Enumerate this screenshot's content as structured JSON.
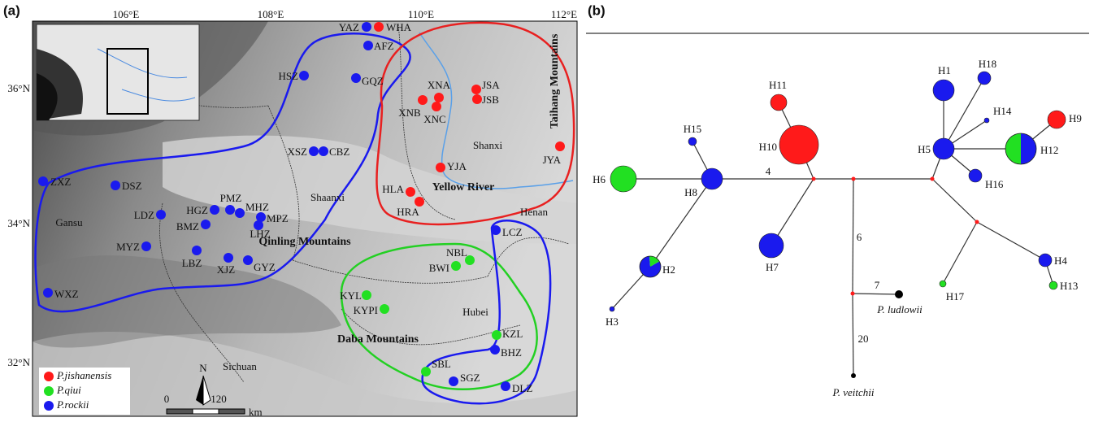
{
  "panel_a": {
    "label": "(a)",
    "lon_ticks": [
      "106°E",
      "108°E",
      "110°E",
      "112°E"
    ],
    "lat_ticks": [
      "36°N",
      "34°N",
      "32°N"
    ],
    "regions": [
      "Shaanxi",
      "Shanxi",
      "Gansu",
      "Henan",
      "Hubei",
      "Sichuan"
    ],
    "features": [
      "Qinling Mountains",
      "Daba Mountains",
      "Yellow River",
      "Taihang Mountains"
    ],
    "north": "N",
    "scale": {
      "start": "0",
      "end": "120",
      "unit": "km"
    },
    "legend": [
      {
        "name": "P.jishanensis",
        "color": "#ff1a1a",
        "sites": [
          "WHA",
          "XNA",
          "XNB",
          "XNC",
          "JSA",
          "JSB",
          "YJA",
          "HLA",
          "HRA",
          "JYA"
        ]
      },
      {
        "name": "P.qiui",
        "color": "#22e022",
        "sites": [
          "NBL",
          "BWI",
          "KYL",
          "KYPI",
          "KZL",
          "SBL"
        ]
      },
      {
        "name": "P.rockii",
        "color": "#1a1aee",
        "sites": [
          "YAZ",
          "AFZ",
          "GQZ",
          "HSZ",
          "XSZ",
          "CBZ",
          "ZXZ",
          "DSZ",
          "LDZ",
          "HGZ",
          "PMZ",
          "MHZ",
          "MPZ",
          "LHZ",
          "BMZ",
          "MYZ",
          "LBZ",
          "XJZ",
          "GYZ",
          "WXZ",
          "LCZ",
          "BHZ",
          "SGZ",
          "DLZ"
        ]
      }
    ]
  },
  "panel_b": {
    "label": "(b)",
    "nodes": [
      {
        "label": "H1",
        "colors": [
          "#1a1aee"
        ]
      },
      {
        "label": "H2",
        "colors": [
          "#1a1aee",
          "#22e022"
        ]
      },
      {
        "label": "H3",
        "colors": [
          "#1a1aee"
        ]
      },
      {
        "label": "H4",
        "colors": [
          "#1a1aee"
        ]
      },
      {
        "label": "H5",
        "colors": [
          "#1a1aee"
        ]
      },
      {
        "label": "H6",
        "colors": [
          "#22e022"
        ]
      },
      {
        "label": "H7",
        "colors": [
          "#1a1aee"
        ]
      },
      {
        "label": "H8",
        "colors": [
          "#1a1aee"
        ]
      },
      {
        "label": "H9",
        "colors": [
          "#ff1a1a"
        ]
      },
      {
        "label": "H10",
        "colors": [
          "#ff1a1a"
        ]
      },
      {
        "label": "H11",
        "colors": [
          "#ff1a1a"
        ]
      },
      {
        "label": "H12",
        "colors": [
          "#1a1aee",
          "#22e022"
        ]
      },
      {
        "label": "H13",
        "colors": [
          "#22e022"
        ]
      },
      {
        "label": "H14",
        "colors": [
          "#1a1aee"
        ]
      },
      {
        "label": "H15",
        "colors": [
          "#1a1aee"
        ]
      },
      {
        "label": "H16",
        "colors": [
          "#1a1aee"
        ]
      },
      {
        "label": "H17",
        "colors": [
          "#22e022"
        ]
      },
      {
        "label": "H18",
        "colors": [
          "#1a1aee"
        ]
      }
    ],
    "outgroups": [
      {
        "label": "P. ludlowii",
        "color": "#000000"
      },
      {
        "label": "P. veitchii",
        "color": "#000000"
      }
    ],
    "branch_labels": [
      "4",
      "6",
      "7",
      "20"
    ]
  }
}
